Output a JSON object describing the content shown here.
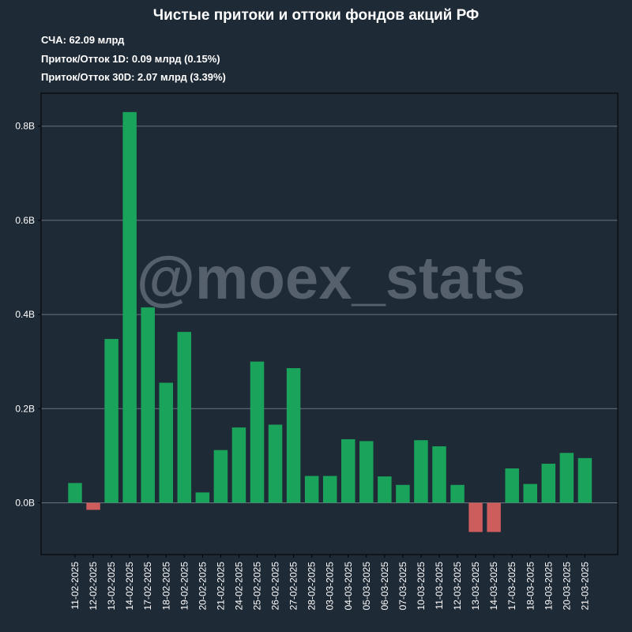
{
  "header": {
    "title": "Чистые притоки и оттоки фондов акций РФ",
    "stats": [
      "СЧА: 62.09 млрд",
      "Приток/Отток 1D: 0.09 млрд (0.15%)",
      "Приток/Отток 30D: 2.07 млрд (3.39%)"
    ]
  },
  "watermark": "@moex_stats",
  "colors": {
    "background": "#1f2a37",
    "positive": "#1aa35b",
    "negative": "#cd5c5c",
    "grid": "#6b7480",
    "watermark": "#56606c",
    "text": "#ffffff"
  },
  "chart_data": {
    "type": "bar",
    "title": "Чистые притоки и оттоки фондов акций РФ",
    "xlabel": "",
    "ylabel": "",
    "ylim": [
      -0.11,
      0.87
    ],
    "yticks": [
      0.0,
      0.2,
      0.4,
      0.6,
      0.8
    ],
    "ytick_labels": [
      "0.0B",
      "0.2B",
      "0.4B",
      "0.6B",
      "0.8B"
    ],
    "grid": "horizontal",
    "categories": [
      "11-02-2025",
      "12-02-2025",
      "13-02-2025",
      "14-02-2025",
      "17-02-2025",
      "18-02-2025",
      "19-02-2025",
      "20-02-2025",
      "21-02-2025",
      "24-02-2025",
      "25-02-2025",
      "26-02-2025",
      "27-02-2025",
      "28-02-2025",
      "03-03-2025",
      "04-03-2025",
      "05-03-2025",
      "06-03-2025",
      "07-03-2025",
      "10-03-2025",
      "11-03-2025",
      "12-03-2025",
      "13-03-2025",
      "14-03-2025",
      "17-03-2025",
      "18-03-2025",
      "19-03-2025",
      "20-03-2025",
      "21-03-2025"
    ],
    "values": [
      0.042,
      -0.015,
      0.348,
      0.83,
      0.415,
      0.255,
      0.363,
      0.022,
      0.112,
      0.16,
      0.3,
      0.166,
      0.286,
      0.057,
      0.057,
      0.135,
      0.131,
      0.056,
      0.038,
      0.133,
      0.12,
      0.038,
      -0.062,
      -0.062,
      0.073,
      0.04,
      0.083,
      0.106,
      0.095
    ]
  }
}
